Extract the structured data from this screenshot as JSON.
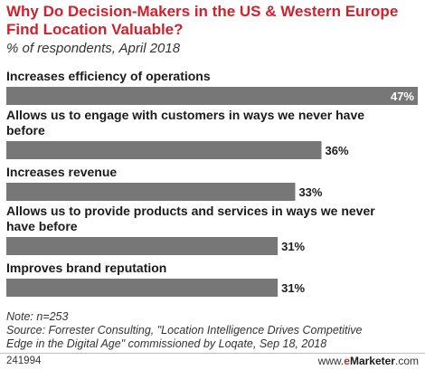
{
  "chart_data": {
    "type": "bar",
    "orientation": "horizontal",
    "title": "Why Do Decision-Makers in the US & Western Europe Find Location Valuable?",
    "subtitle": "% of respondents, April 2018",
    "categories": [
      [
        "Increases efficiency of operations"
      ],
      [
        "Allows us to engage with customers in ways we never have",
        "before"
      ],
      [
        "Increases revenue"
      ],
      [
        "Allows us to provide products and services in ways we never",
        "have before"
      ],
      [
        "Improves brand reputation"
      ]
    ],
    "values": [
      47,
      36,
      33,
      31,
      31
    ],
    "value_labels": [
      "47%",
      "36%",
      "33%",
      "31%",
      "31%"
    ],
    "unit": "%",
    "xlim": [
      0,
      47
    ],
    "bar_color": "#777777",
    "grid": false,
    "legend": "none"
  },
  "footer": {
    "note": "Note: n=253",
    "source_line1": "Source: Forrester Consulting, \"Location Intelligence Drives Competitive",
    "source_line2": "Edge in the Digital Age\" commissioned by Loqate, Sep 18, 2018",
    "chart_id": "241994",
    "brand_prefix": "www.",
    "brand_e": "e",
    "brand_rest": "Marketer",
    "brand_suffix": ".com"
  },
  "colors": {
    "title": "#d4202b",
    "bar": "#777777",
    "label_inside": "#ffffff",
    "label_outside": "#1a1a1a"
  }
}
